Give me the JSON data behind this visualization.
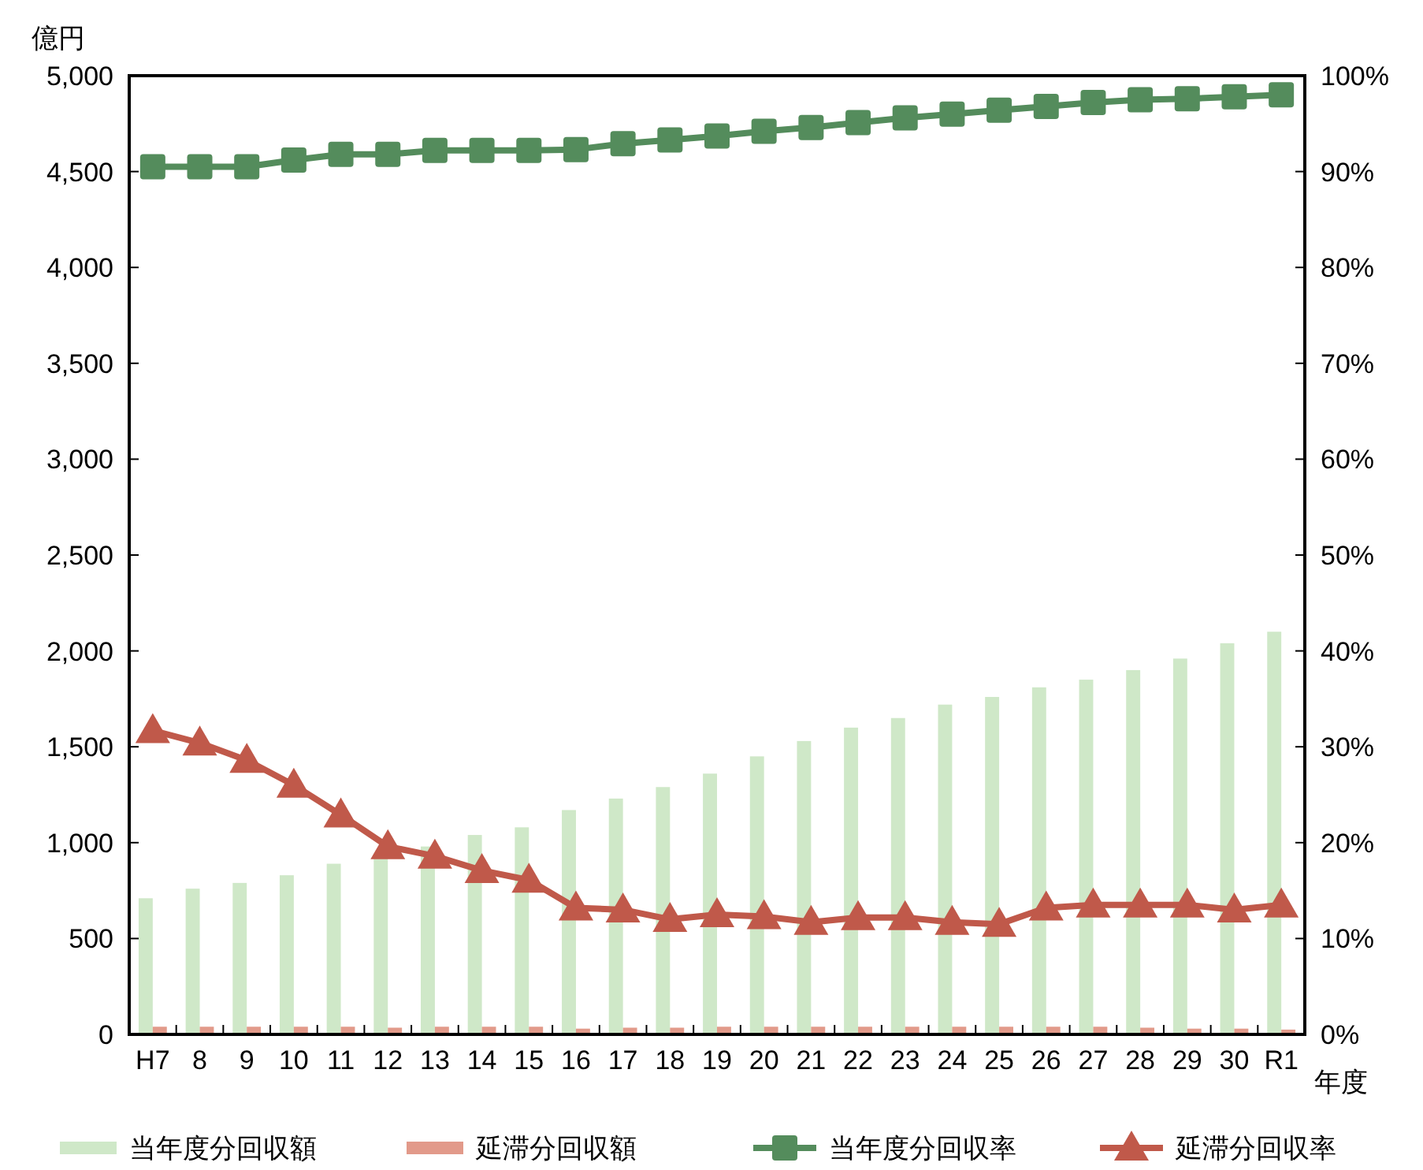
{
  "chart_data": {
    "type": "bar",
    "ylabel": "億円",
    "xlabel": "年度",
    "categories": [
      "H7",
      "8",
      "9",
      "10",
      "11",
      "12",
      "13",
      "14",
      "15",
      "16",
      "17",
      "18",
      "19",
      "20",
      "21",
      "22",
      "23",
      "24",
      "25",
      "26",
      "27",
      "28",
      "29",
      "30",
      "R1"
    ],
    "series": [
      {
        "name": "当年度分回収額",
        "color": "#cfe8c8",
        "values": [
          710,
          760,
          790,
          830,
          890,
          930,
          980,
          1040,
          1080,
          1170,
          1230,
          1290,
          1360,
          1450,
          1530,
          1600,
          1650,
          1720,
          1760,
          1810,
          1850,
          1900,
          1960,
          2040,
          2100
        ]
      },
      {
        "name": "延滞分回収額",
        "color": "#e29a8a",
        "values": [
          40,
          40,
          40,
          40,
          40,
          35,
          40,
          40,
          40,
          30,
          35,
          35,
          40,
          40,
          40,
          40,
          40,
          40,
          40,
          40,
          40,
          35,
          30,
          30,
          25
        ]
      },
      {
        "name": "当年度分回収率",
        "type": "line",
        "axis": "y2",
        "marker": "square",
        "color": "#548c5c",
        "values": [
          90.5,
          90.5,
          90.5,
          91.2,
          91.8,
          91.8,
          92.2,
          92.2,
          92.2,
          92.3,
          92.9,
          93.3,
          93.7,
          94.2,
          94.6,
          95.1,
          95.6,
          96.0,
          96.4,
          96.8,
          97.2,
          97.5,
          97.6,
          97.8,
          98.0
        ]
      },
      {
        "name": "延滞分回収率",
        "type": "line",
        "axis": "y2",
        "marker": "triangle",
        "color": "#c0594a",
        "values": [
          31.7,
          30.4,
          28.6,
          26.0,
          22.9,
          19.6,
          18.6,
          17.1,
          16.1,
          13.2,
          13.0,
          12.0,
          12.5,
          12.3,
          11.7,
          12.2,
          12.2,
          11.7,
          11.5,
          13.2,
          13.5,
          13.5,
          13.5,
          13.0,
          13.5
        ]
      }
    ],
    "ylim": [
      0,
      5000
    ],
    "yticks": [
      {
        "value": 0,
        "label": "0"
      },
      {
        "value": 500,
        "label": "500"
      },
      {
        "value": 1000,
        "label": "1,000"
      },
      {
        "value": 1500,
        "label": "1,500"
      },
      {
        "value": 2000,
        "label": "2,000"
      },
      {
        "value": 2500,
        "label": "2,500"
      },
      {
        "value": 3000,
        "label": "3,000"
      },
      {
        "value": 3500,
        "label": "3,500"
      },
      {
        "value": 4000,
        "label": "4,000"
      },
      {
        "value": 4500,
        "label": "4,500"
      },
      {
        "value": 5000,
        "label": "5,000"
      }
    ],
    "y2lim": [
      0,
      100
    ],
    "y2ticks": [
      {
        "value": 0,
        "label": "0%"
      },
      {
        "value": 10,
        "label": "10%"
      },
      {
        "value": 20,
        "label": "20%"
      },
      {
        "value": 30,
        "label": "30%"
      },
      {
        "value": 40,
        "label": "40%"
      },
      {
        "value": 50,
        "label": "50%"
      },
      {
        "value": 60,
        "label": "60%"
      },
      {
        "value": 70,
        "label": "70%"
      },
      {
        "value": 80,
        "label": "80%"
      },
      {
        "value": 90,
        "label": "90%"
      },
      {
        "value": 100,
        "label": "100%"
      }
    ],
    "grid": false,
    "legend": "bottom"
  }
}
